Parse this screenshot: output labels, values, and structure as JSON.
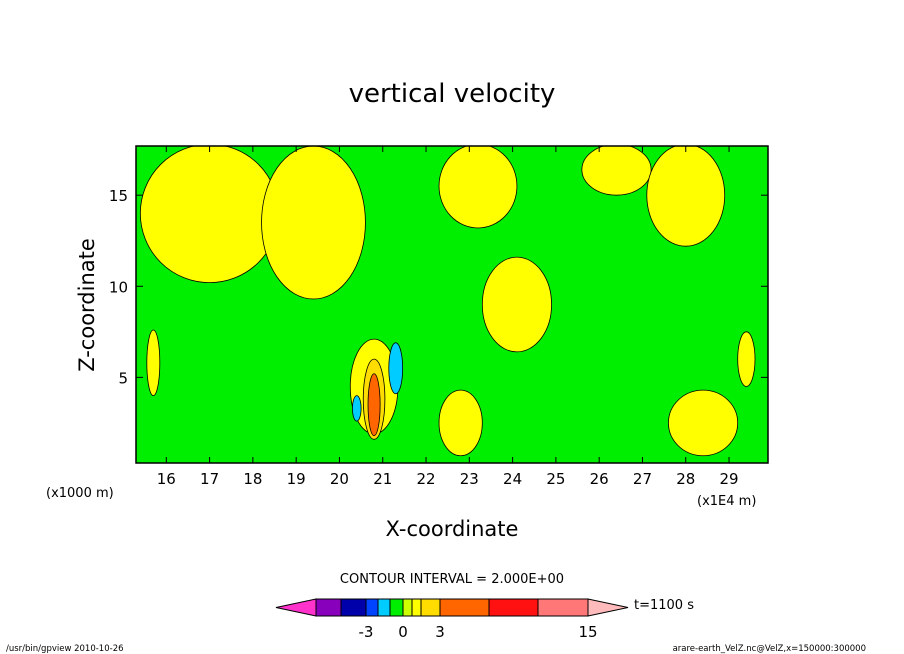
{
  "chart_data": {
    "type": "heatmap",
    "title": "vertical velocity",
    "xlabel": "X-coordinate",
    "ylabel": "Z-coordinate",
    "x_unit_left": "(x1000 m)",
    "x_unit_right": "(x1E4 m)",
    "xlim": [
      15.3,
      29.9
    ],
    "ylim": [
      0.3,
      17.7
    ],
    "x_ticks": [
      16,
      17,
      18,
      19,
      20,
      21,
      22,
      23,
      24,
      25,
      26,
      27,
      28,
      29
    ],
    "y_ticks": [
      5,
      10,
      15
    ],
    "contour_interval_label": "CONTOUR INTERVAL = 2.000E+00",
    "time_label": "t=1100 s",
    "colorbar": {
      "colors": [
        "#ff33cc",
        "#8800bb",
        "#0000aa",
        "#0044ff",
        "#00ccff",
        "#00ee00",
        "#ccff00",
        "#ffff00",
        "#ffdd00",
        "#ff6600",
        "#ff1111",
        "#ff7777",
        "#ffbbbb"
      ],
      "tick_labels": [
        "-3",
        "0",
        "3",
        "15"
      ]
    },
    "regions": [
      {
        "value": "positive",
        "color": "#ffff00",
        "cx": 17.0,
        "cy": 14.0,
        "rx": 1.6,
        "ry": 3.8
      },
      {
        "value": "positive",
        "color": "#ffff00",
        "cx": 19.4,
        "cy": 13.5,
        "rx": 1.2,
        "ry": 4.2
      },
      {
        "value": "positive",
        "color": "#ffff00",
        "cx": 23.2,
        "cy": 15.5,
        "rx": 0.9,
        "ry": 2.3
      },
      {
        "value": "positive",
        "color": "#ffff00",
        "cx": 26.4,
        "cy": 16.4,
        "rx": 0.8,
        "ry": 1.4
      },
      {
        "value": "positive",
        "color": "#ffff00",
        "cx": 28.0,
        "cy": 15.0,
        "rx": 0.9,
        "ry": 2.8
      },
      {
        "value": "positive",
        "color": "#ffff00",
        "cx": 24.1,
        "cy": 9.0,
        "rx": 0.8,
        "ry": 2.6
      },
      {
        "value": "positive",
        "color": "#ffff00",
        "cx": 20.8,
        "cy": 4.5,
        "rx": 0.55,
        "ry": 2.6
      },
      {
        "value": "positive",
        "color": "#ffff00",
        "cx": 15.7,
        "cy": 5.8,
        "rx": 0.15,
        "ry": 1.8
      },
      {
        "value": "positive",
        "color": "#ffff00",
        "cx": 29.4,
        "cy": 6.0,
        "rx": 0.2,
        "ry": 1.5
      },
      {
        "value": "positive",
        "color": "#ffff00",
        "cx": 28.4,
        "cy": 2.5,
        "rx": 0.8,
        "ry": 1.8
      },
      {
        "value": "positive",
        "color": "#ffff00",
        "cx": 22.8,
        "cy": 2.5,
        "rx": 0.5,
        "ry": 1.8
      },
      {
        "value": "negative",
        "color": "#00ccff",
        "cx": 21.3,
        "cy": 5.5,
        "rx": 0.16,
        "ry": 1.4
      },
      {
        "value": "negative",
        "color": "#00ccff",
        "cx": 20.4,
        "cy": 3.3,
        "rx": 0.1,
        "ry": 0.7
      },
      {
        "value": "positive",
        "color": "#ffdd00",
        "cx": 20.8,
        "cy": 3.8,
        "rx": 0.25,
        "ry": 2.2
      },
      {
        "value": "positive",
        "color": "#ff6600",
        "cx": 20.8,
        "cy": 3.5,
        "rx": 0.14,
        "ry": 1.7
      }
    ]
  },
  "footer": {
    "left": "/usr/bin/gpview   2010-10-26",
    "right": "arare-earth_VelZ.nc@VelZ,x=150000:300000"
  }
}
